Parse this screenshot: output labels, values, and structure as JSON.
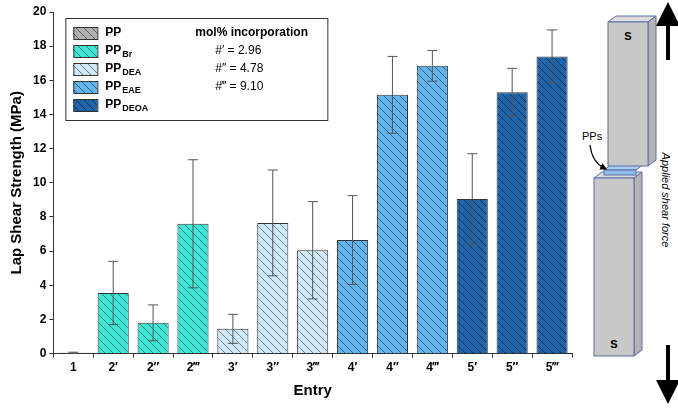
{
  "chart_data": {
    "type": "bar",
    "y_label": "Lap Shear Strength (MPa)",
    "x_label": "Entry",
    "categories": [
      "1",
      "2′",
      "2″",
      "2‴",
      "3′",
      "3″",
      "3‴",
      "4′",
      "4″",
      "4‴",
      "5′",
      "5″",
      "5‴"
    ],
    "series": [
      {
        "name": "PP",
        "color": "#b0b0b0",
        "values": [
          0.05,
          null,
          null,
          null,
          null,
          null,
          null,
          null,
          null,
          null,
          null,
          null,
          null
        ],
        "errors": [
          0.03,
          null,
          null,
          null,
          null,
          null,
          null,
          null,
          null,
          null,
          null,
          null,
          null
        ]
      },
      {
        "name": "PPBr",
        "color": "#3ee6d8",
        "values": [
          null,
          3.55,
          1.8,
          7.6,
          null,
          null,
          null,
          null,
          null,
          null,
          null,
          null,
          null
        ],
        "errors": [
          null,
          1.85,
          1.05,
          3.75,
          null,
          null,
          null,
          null,
          null,
          null,
          null,
          null,
          null
        ]
      },
      {
        "name": "PPDEA",
        "color": "#cfe8f5",
        "values": [
          null,
          null,
          null,
          null,
          1.45,
          7.65,
          6.05,
          null,
          null,
          null,
          null,
          null,
          null
        ],
        "errors": [
          null,
          null,
          null,
          null,
          0.85,
          3.1,
          2.85,
          null,
          null,
          null,
          null,
          null,
          null
        ]
      },
      {
        "name": "PPEAE",
        "color": "#62b4ea",
        "values": [
          null,
          null,
          null,
          null,
          null,
          null,
          null,
          6.65,
          15.15,
          16.85,
          null,
          null,
          null
        ],
        "errors": [
          null,
          null,
          null,
          null,
          null,
          null,
          null,
          2.6,
          2.25,
          0.9,
          null,
          null,
          null
        ]
      },
      {
        "name": "PPDEOA",
        "color": "#1f64a8",
        "values": [
          null,
          null,
          null,
          null,
          null,
          null,
          null,
          null,
          null,
          null,
          9.05,
          15.3,
          17.4
        ],
        "errors": [
          null,
          null,
          null,
          null,
          null,
          null,
          null,
          null,
          null,
          null,
          2.65,
          1.4,
          1.55
        ]
      }
    ],
    "ylim": [
      0,
      20
    ],
    "yticks": [
      0,
      2,
      4,
      6,
      8,
      10,
      12,
      14,
      16,
      18,
      20
    ],
    "grid": false,
    "legend": "top-left",
    "legend_title": "mol% incorporation",
    "incorporation": [
      {
        "label": "#′ =",
        "value": 2.96
      },
      {
        "label": "#″ =",
        "value": 4.78
      },
      {
        "label": "#‴ =",
        "value": 9.1
      }
    ]
  },
  "diagram": {
    "top_label": "S",
    "bottom_label": "S",
    "adhesive_label": "PPs",
    "force_label": "Applied shear force"
  }
}
